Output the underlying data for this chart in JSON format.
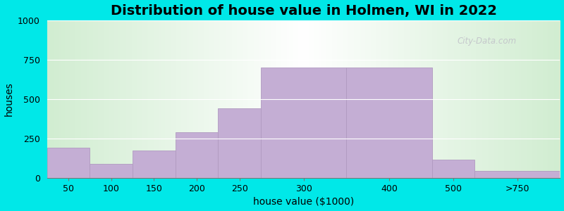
{
  "title": "Distribution of house value in Holmen, WI in 2022",
  "xlabel": "house value ($1000)",
  "ylabel": "houses",
  "bar_labels": [
    "50",
    "100",
    "150",
    "200",
    "250",
    "300",
    "400",
    "500",
    ">750"
  ],
  "bar_values": [
    190,
    90,
    175,
    290,
    440,
    700,
    700,
    115,
    45
  ],
  "bar_lefts": [
    0,
    1,
    2,
    3,
    4,
    5,
    7,
    9,
    10
  ],
  "bar_widths": [
    1,
    1,
    1,
    1,
    1,
    2,
    2,
    1,
    2
  ],
  "bar_color": "#c4aed4",
  "bar_edge_color": "#b09ac0",
  "yticks": [
    0,
    250,
    500,
    750,
    1000
  ],
  "ylim": [
    0,
    1000
  ],
  "xlim": [
    0,
    12
  ],
  "total_width": 12,
  "bg_outer": "#00e8e8",
  "title_fontsize": 14,
  "axis_label_fontsize": 10,
  "tick_fontsize": 9,
  "watermark_text": "City-Data.com"
}
